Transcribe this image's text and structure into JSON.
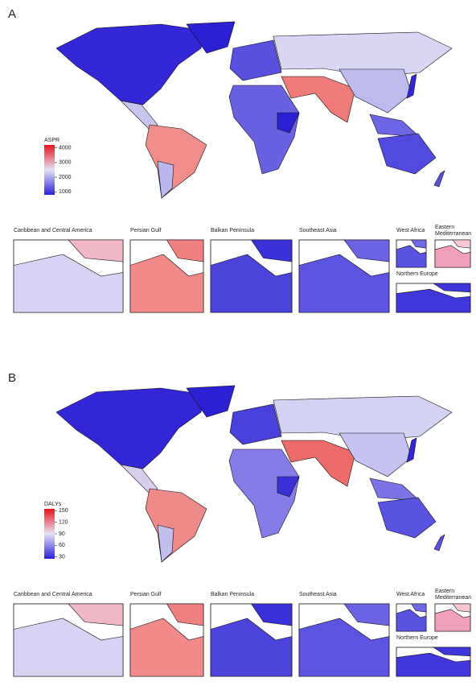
{
  "panels": [
    {
      "label": "A",
      "legend": {
        "title": "ASPR",
        "lim": [
          800,
          4200
        ],
        "ticks": [
          1000,
          2000,
          3000,
          4000
        ],
        "colors": [
          "#2a1fd6",
          "#e4e2f4",
          "#e8141e"
        ]
      },
      "insets": [
        "Caribbean and Central America",
        "Persian Gulf",
        "Balkan Peninsula",
        "Southeast Asia",
        "West Africa",
        "Eastern\nMediterranean",
        "Northern Europe"
      ]
    },
    {
      "label": "B",
      "legend": {
        "title": "DALYs",
        "lim": [
          25,
          155
        ],
        "ticks": [
          30,
          60,
          90,
          120,
          150
        ],
        "colors": [
          "#2a1fd6",
          "#e4e2f4",
          "#e8141e"
        ]
      },
      "insets": [
        "Caribbean and Central America",
        "Persian Gulf",
        "Balkan Peninsula",
        "Southeast Asia",
        "West Africa",
        "Eastern\nMediterranean",
        "Northern Europe"
      ]
    }
  ]
}
